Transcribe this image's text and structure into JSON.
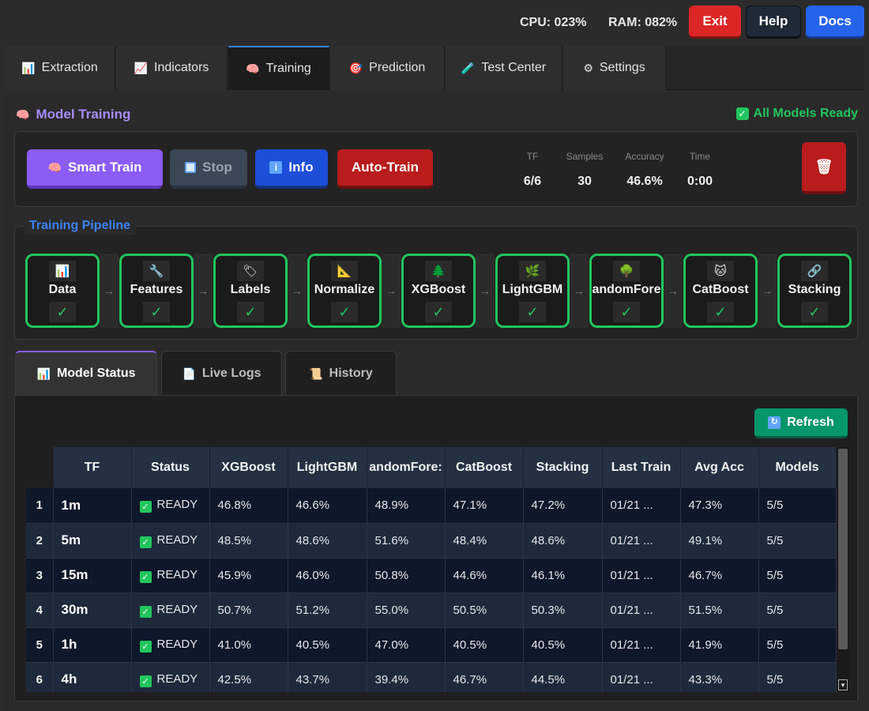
{
  "topbar": {
    "cpu": "CPU: 023%",
    "ram": "RAM: 082%",
    "exit_label": "Exit",
    "help_label": "Help",
    "docs_label": "Docs"
  },
  "main_tabs": [
    {
      "label": "Extraction",
      "icon": "bar-chart-icon"
    },
    {
      "label": "Indicators",
      "icon": "line-chart-icon"
    },
    {
      "label": "Training",
      "icon": "brain-icon"
    },
    {
      "label": "Prediction",
      "icon": "target-icon"
    },
    {
      "label": "Test Center",
      "icon": "test-tube-icon"
    },
    {
      "label": "Settings",
      "icon": "gear-icon"
    }
  ],
  "active_tab": "Training",
  "training": {
    "title": "Model Training",
    "ready_label": "All Models Ready",
    "smart_train_label": "Smart Train",
    "stop_label": "Stop",
    "info_label": "Info",
    "auto_train_label": "Auto-Train",
    "metrics": [
      {
        "label": "TF",
        "value": "6/6"
      },
      {
        "label": "Samples",
        "value": "30"
      },
      {
        "label": "Accuracy",
        "value": "46.6%"
      },
      {
        "label": "Time",
        "value": "0:00"
      }
    ]
  },
  "pipeline": {
    "title": "Training Pipeline",
    "arrow": "→",
    "check": "✓",
    "stages": [
      {
        "name": "Data",
        "icon": "bar-chart-icon"
      },
      {
        "name": "Features",
        "icon": "wrench-icon"
      },
      {
        "name": "Labels",
        "icon": "tag-icon"
      },
      {
        "name": "Normalize",
        "icon": "ruler-icon"
      },
      {
        "name": "XGBoost",
        "icon": "tree-icon"
      },
      {
        "name": "LightGBM",
        "icon": "leaf-icon"
      },
      {
        "name": "andomFore",
        "icon": "tree-icon"
      },
      {
        "name": "CatBoost",
        "icon": "cat-icon"
      },
      {
        "name": "Stacking",
        "icon": "link-icon"
      }
    ]
  },
  "sub_tabs": [
    {
      "label": "Model Status",
      "icon": "bar-chart-icon"
    },
    {
      "label": "Live Logs",
      "icon": "document-icon"
    },
    {
      "label": "History",
      "icon": "scroll-icon"
    }
  ],
  "refresh_label": "Refresh",
  "table": {
    "headers": [
      "TF",
      "Status",
      "XGBoost",
      "LightGBM",
      "andomFore:",
      "CatBoost",
      "Stacking",
      "Last Train",
      "Avg Acc",
      "Models"
    ],
    "rows": [
      {
        "n": "1",
        "tf": "1m",
        "status": "READY",
        "xgb": "46.8%",
        "lgbm": "46.6%",
        "rf": "48.9%",
        "cat": "47.1%",
        "stack": "47.2%",
        "last": "01/21 ...",
        "avg": "47.3%",
        "models": "5/5"
      },
      {
        "n": "2",
        "tf": "5m",
        "status": "READY",
        "xgb": "48.5%",
        "lgbm": "48.6%",
        "rf": "51.6%",
        "cat": "48.4%",
        "stack": "48.6%",
        "last": "01/21 ...",
        "avg": "49.1%",
        "models": "5/5"
      },
      {
        "n": "3",
        "tf": "15m",
        "status": "READY",
        "xgb": "45.9%",
        "lgbm": "46.0%",
        "rf": "50.8%",
        "cat": "44.6%",
        "stack": "46.1%",
        "last": "01/21 ...",
        "avg": "46.7%",
        "models": "5/5"
      },
      {
        "n": "4",
        "tf": "30m",
        "status": "READY",
        "xgb": "50.7%",
        "lgbm": "51.2%",
        "rf": "55.0%",
        "cat": "50.5%",
        "stack": "50.3%",
        "last": "01/21 ...",
        "avg": "51.5%",
        "models": "5/5"
      },
      {
        "n": "5",
        "tf": "1h",
        "status": "READY",
        "xgb": "41.0%",
        "lgbm": "40.5%",
        "rf": "47.0%",
        "cat": "40.5%",
        "stack": "40.5%",
        "last": "01/21 ...",
        "avg": "41.9%",
        "models": "5/5"
      },
      {
        "n": "6",
        "tf": "4h",
        "status": "READY",
        "xgb": "42.5%",
        "lgbm": "43.7%",
        "rf": "39.4%",
        "cat": "46.7%",
        "stack": "44.5%",
        "last": "01/21 ...",
        "avg": "43.3%",
        "models": "5/5"
      }
    ]
  },
  "colors": {
    "accent_purple": "#8b5cf6",
    "accent_green": "#22c55e",
    "accent_blue": "#3b82f6",
    "danger_red": "#dc2626"
  }
}
